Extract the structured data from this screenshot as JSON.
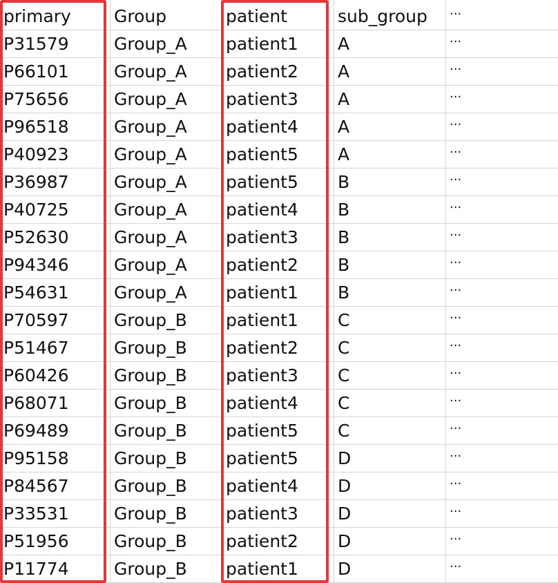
{
  "sheet": {
    "columns": [
      "primary",
      "Group",
      "patient",
      "sub_group",
      "···"
    ],
    "rows": [
      [
        "P31579",
        "Group_A",
        "patient1",
        "A",
        "···"
      ],
      [
        "P66101",
        "Group_A",
        "patient2",
        "A",
        "···"
      ],
      [
        "P75656",
        "Group_A",
        "patient3",
        "A",
        "···"
      ],
      [
        "P96518",
        "Group_A",
        "patient4",
        "A",
        "···"
      ],
      [
        "P40923",
        "Group_A",
        "patient5",
        "A",
        "···"
      ],
      [
        "P36987",
        "Group_A",
        "patient5",
        "B",
        "···"
      ],
      [
        "P40725",
        "Group_A",
        "patient4",
        "B",
        "···"
      ],
      [
        "P52630",
        "Group_A",
        "patient3",
        "B",
        "···"
      ],
      [
        "P94346",
        "Group_A",
        "patient2",
        "B",
        "···"
      ],
      [
        "P54631",
        "Group_A",
        "patient1",
        "B",
        "···"
      ],
      [
        "P70597",
        "Group_B",
        "patient1",
        "C",
        "···"
      ],
      [
        "P51467",
        "Group_B",
        "patient2",
        "C",
        "···"
      ],
      [
        "P60426",
        "Group_B",
        "patient3",
        "C",
        "···"
      ],
      [
        "P68071",
        "Group_B",
        "patient4",
        "C",
        "···"
      ],
      [
        "P69489",
        "Group_B",
        "patient5",
        "C",
        "···"
      ],
      [
        "P95158",
        "Group_B",
        "patient5",
        "D",
        "···"
      ],
      [
        "P84567",
        "Group_B",
        "patient4",
        "D",
        "···"
      ],
      [
        "P33531",
        "Group_B",
        "patient3",
        "D",
        "···"
      ],
      [
        "P51956",
        "Group_B",
        "patient2",
        "D",
        "···"
      ],
      [
        "P11774",
        "Group_B",
        "patient1",
        "D",
        "···"
      ]
    ]
  },
  "highlight": {
    "color": "#e8353a",
    "columns": [
      "primary",
      "patient"
    ]
  }
}
